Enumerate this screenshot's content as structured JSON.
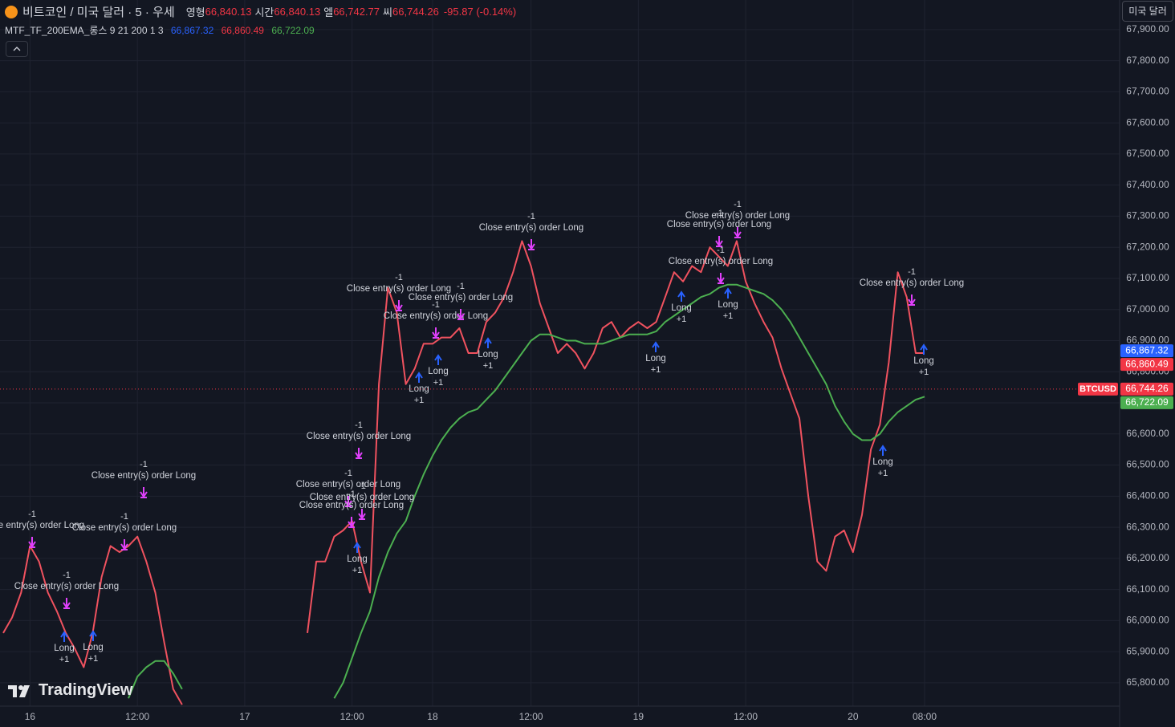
{
  "header": {
    "title": "비트코인 / 미국 달러 · 5 · 우세",
    "ohlc": [
      {
        "label": "영형",
        "value": "66,840.13"
      },
      {
        "label": "시간",
        "value": "66,840.13"
      },
      {
        "label": "엘",
        "value": "66,742.77"
      },
      {
        "label": "씨",
        "value": "66,744.26"
      }
    ],
    "change": "-95.87 (-0.14%)",
    "currency_button": "미국 달러"
  },
  "indicator": {
    "name": "MTF_TF_200EMA_롱스 9 21 200 1 3",
    "values": [
      {
        "text": "66,867.32",
        "color": "#2962ff"
      },
      {
        "text": "66,860.49",
        "color": "#f23645"
      },
      {
        "text": "66,722.09",
        "color": "#4caf50"
      }
    ]
  },
  "watermark": "TradingView",
  "orders": [
    {
      "text": "Close entry(s) order Long",
      "qty": "-1"
    },
    {
      "text": "Close entry(s) order Long",
      "qty": "-1"
    },
    {
      "text": "Close entry(s) order Long",
      "qty": "-1"
    },
    {
      "text": "Close entry(s) order Long",
      "qty": "-1"
    },
    {
      "text": "Close entry(s) order Long",
      "qty": "-1"
    },
    {
      "text": "Close entry(s) order Long",
      "qty": "-1"
    },
    {
      "text": "Close entry(s) order Long",
      "qty": "-1"
    },
    {
      "text": "Close entry(s) order Long",
      "qty": "-1"
    },
    {
      "text": "Close entry(s) order Long",
      "qty": "-1"
    },
    {
      "text": "Close entry(s) order Long",
      "qty": "-1"
    },
    {
      "text": "Close entry(s) order Long",
      "qty": "-1"
    },
    {
      "text": "Close entry(s) order Long",
      "qty": "-1"
    },
    {
      "text": "Close entry(s) order Long",
      "qty": "-1"
    },
    {
      "text": "Close entry(s) order Long",
      "qty": "-1"
    },
    {
      "text": "Close entry(s) order Long",
      "qty": "-1"
    },
    {
      "text": "Close entry(s) order Long",
      "qty": "-1"
    },
    {
      "text": "Long",
      "qty": "+1"
    },
    {
      "text": "Long",
      "qty": "+1"
    },
    {
      "text": "Long",
      "qty": "+1"
    },
    {
      "text": "Long",
      "qty": "+1"
    },
    {
      "text": "Long",
      "qty": "+1"
    },
    {
      "text": "Long",
      "qty": "+1"
    },
    {
      "text": "Long",
      "qty": "+1"
    },
    {
      "text": "Long",
      "qty": "+1"
    },
    {
      "text": "Long",
      "qty": "+1"
    },
    {
      "text": "Long",
      "qty": "+1"
    },
    {
      "text": "Long",
      "qty": "+1"
    }
  ],
  "chart_data": {
    "type": "line",
    "categories": [
      null,
      null,
      null,
      "16",
      null,
      null,
      null,
      null,
      null,
      null,
      null,
      null,
      null,
      null,
      null,
      "12:00",
      null,
      null,
      null,
      null,
      null,
      null,
      null,
      null,
      null,
      null,
      null,
      "17",
      null,
      null,
      null,
      null,
      null,
      null,
      null,
      null,
      null,
      null,
      null,
      "12:00",
      null,
      null,
      null,
      null,
      null,
      null,
      null,
      null,
      "18",
      null,
      null,
      null,
      null,
      null,
      null,
      null,
      null,
      null,
      null,
      "12:00",
      null,
      null,
      null,
      null,
      null,
      null,
      null,
      null,
      null,
      null,
      null,
      "19",
      null,
      null,
      null,
      null,
      null,
      null,
      null,
      null,
      null,
      null,
      null,
      "12:00",
      null,
      null,
      null,
      null,
      null,
      null,
      null,
      null,
      null,
      null,
      null,
      "20",
      null,
      null,
      null,
      null,
      null,
      null,
      null,
      "08:00"
    ],
    "series": [
      {
        "color": "#f0525f",
        "values": [
          65960,
          66010,
          66090,
          66240,
          66190,
          66090,
          66030,
          65960,
          65910,
          65850,
          65960,
          66140,
          66240,
          66220,
          66240,
          66270,
          66190,
          66090,
          65930,
          65780,
          65730,
          null,
          null,
          null,
          null,
          null,
          null,
          null,
          null,
          null,
          null,
          null,
          null,
          null,
          65960,
          66190,
          66190,
          66270,
          66290,
          66320,
          66190,
          66090,
          66760,
          67070,
          66990,
          66760,
          66810,
          66890,
          66890,
          66910,
          66910,
          66940,
          66860,
          66860,
          66960,
          66990,
          67040,
          67120,
          67220,
          67140,
          67020,
          66940,
          66860,
          66890,
          66860,
          66810,
          66860,
          66940,
          66960,
          66910,
          66940,
          66960,
          66940,
          66960,
          67040,
          67120,
          67090,
          67140,
          67120,
          67200,
          67170,
          67140,
          67220,
          67090,
          67020,
          66960,
          66910,
          66810,
          66730,
          66650,
          66400,
          66190,
          66160,
          66270,
          66290,
          66220,
          66340,
          66550,
          66630,
          66830,
          67120,
          67040,
          66860,
          66860
        ]
      },
      {
        "color": "#4caf50",
        "values": [
          null,
          null,
          null,
          null,
          null,
          null,
          null,
          null,
          null,
          null,
          null,
          null,
          null,
          null,
          65750,
          65820,
          65850,
          65870,
          65870,
          65830,
          65780,
          null,
          null,
          null,
          null,
          null,
          null,
          null,
          null,
          null,
          null,
          null,
          null,
          null,
          null,
          null,
          null,
          65750,
          65800,
          65880,
          65960,
          66030,
          66140,
          66220,
          66280,
          66320,
          66400,
          66470,
          66530,
          66580,
          66620,
          66650,
          66670,
          66680,
          66710,
          66740,
          66780,
          66820,
          66860,
          66900,
          66920,
          66920,
          66910,
          66900,
          66900,
          66890,
          66890,
          66890,
          66900,
          66910,
          66920,
          66920,
          66920,
          66930,
          66960,
          66980,
          67000,
          67020,
          67040,
          67050,
          67070,
          67080,
          67080,
          67070,
          67060,
          67050,
          67030,
          67000,
          66960,
          66910,
          66860,
          66810,
          66760,
          66690,
          66640,
          66600,
          66580,
          66580,
          66600,
          66640,
          66670,
          66690,
          66710,
          66720
        ]
      }
    ],
    "ylim": [
      65725,
      67995
    ],
    "yticks": [
      {
        "value": 65800,
        "label": "65,800.00"
      },
      {
        "value": 65900,
        "label": "65,900.00"
      },
      {
        "value": 66000,
        "label": "66,000.00"
      },
      {
        "value": 66100,
        "label": "66,100.00"
      },
      {
        "value": 66200,
        "label": "66,200.00"
      },
      {
        "value": 66300,
        "label": "66,300.00"
      },
      {
        "value": 66400,
        "label": "66,400.00"
      },
      {
        "value": 66500,
        "label": "66,500.00"
      },
      {
        "value": 66600,
        "label": "66,600.00"
      },
      {
        "value": 66700,
        "label": "66,700.00"
      },
      {
        "value": 66800,
        "label": "66,800.00"
      },
      {
        "value": 66900,
        "label": "66,900.00"
      },
      {
        "value": 67000,
        "label": "67,000.00"
      },
      {
        "value": 67100,
        "label": "67,100.00"
      },
      {
        "value": 67200,
        "label": "67,200.00"
      },
      {
        "value": 67300,
        "label": "67,300.00"
      },
      {
        "value": 67400,
        "label": "67,400.00"
      },
      {
        "value": 67500,
        "label": "67,500.00"
      },
      {
        "value": 67600,
        "label": "67,600.00"
      },
      {
        "value": 67700,
        "label": "67,700.00"
      },
      {
        "value": 67800,
        "label": "67,800.00"
      },
      {
        "value": 67900,
        "label": "67,900.00"
      }
    ],
    "grid": true,
    "price_labels": [
      {
        "value": 66867.32,
        "label": "66,867.32",
        "color": "#2962ff"
      },
      {
        "value": 66860.49,
        "label": "66,860.49",
        "color": "#f23645"
      },
      {
        "value": 66744.26,
        "label": "66,744.26",
        "color": "#f23645",
        "symbol": "BTCUSD"
      },
      {
        "value": 66722.09,
        "label": "66,722.09",
        "color": "#4caf50"
      }
    ]
  }
}
